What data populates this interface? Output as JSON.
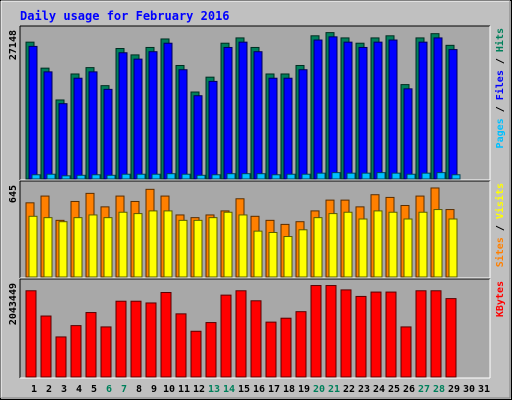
{
  "chart_data": {
    "type": "bar",
    "title": "Daily usage for February 2016",
    "days": [
      "1",
      "2",
      "3",
      "4",
      "5",
      "6",
      "7",
      "8",
      "9",
      "10",
      "11",
      "12",
      "13",
      "14",
      "15",
      "16",
      "17",
      "18",
      "19",
      "20",
      "21",
      "22",
      "23",
      "24",
      "25",
      "26",
      "27",
      "28",
      "29",
      "30",
      "31"
    ],
    "weekend_days": [
      "6",
      "7",
      "13",
      "14",
      "20",
      "21",
      "27",
      "28"
    ],
    "colors": {
      "background": "#c0c0c0",
      "panel": "#a8a8a8",
      "title": "#0000ff",
      "hits": "#00805b",
      "files": "#0000ff",
      "pages": "#00c0ff",
      "visits": "#ffff00",
      "sites": "#ff8000",
      "kbytes": "#ff0000",
      "weekend_label": "#00805b",
      "weekday_label": "#000000"
    },
    "panels": [
      {
        "max_label": "27148",
        "ymax": 27148,
        "legend": [
          {
            "text": "Pages",
            "color": "#00c0ff"
          },
          {
            "text": " / ",
            "color": "#000000"
          },
          {
            "text": "Files",
            "color": "#0000ff"
          },
          {
            "text": " / ",
            "color": "#000000"
          },
          {
            "text": "Hits",
            "color": "#00805b"
          }
        ],
        "series": [
          {
            "name": "Hits",
            "color": "#00805b",
            "values": [
              25800,
              20900,
              14900,
              19800,
              21000,
              17600,
              24600,
              23400,
              24800,
              26400,
              21400,
              16400,
              19200,
              25600,
              26600,
              24800,
              19800,
              19800,
              21400,
              27000,
              27600,
              26600,
              25600,
              26600,
              27000,
              17800,
              26600,
              27400,
              25200
            ]
          },
          {
            "name": "Files",
            "color": "#0000ff",
            "values": [
              25000,
              20200,
              14200,
              19000,
              20200,
              16900,
              23800,
              22600,
              24000,
              25600,
              20600,
              15700,
              18400,
              24800,
              25800,
              24000,
              19000,
              19000,
              20600,
              26200,
              26800,
              25800,
              24800,
              25800,
              26200,
              17000,
              25800,
              26600,
              24400
            ]
          },
          {
            "name": "Pages",
            "color": "#00c0ff",
            "values": [
              800,
              900,
              600,
              700,
              800,
              700,
              900,
              900,
              900,
              1000,
              900,
              700,
              800,
              1000,
              1000,
              1000,
              800,
              900,
              900,
              1100,
              1200,
              1100,
              1100,
              1200,
              1100,
              900,
              1100,
              1200,
              800
            ]
          }
        ]
      },
      {
        "max_label": "645",
        "ymax": 645,
        "legend": [
          {
            "text": "Sites",
            "color": "#ff8000"
          },
          {
            "text": " / ",
            "color": "#000000"
          },
          {
            "text": "Visits",
            "color": "#ffff00"
          }
        ],
        "series": [
          {
            "name": "Sites",
            "color": "#ff8000",
            "values": [
              550,
              600,
              420,
              560,
              620,
              520,
              600,
              560,
              650,
              600,
              460,
              440,
              460,
              490,
              580,
              450,
              420,
              390,
              410,
              490,
              570,
              570,
              520,
              610,
              590,
              530,
              600,
              660,
              500
            ]
          },
          {
            "name": "Visits",
            "color": "#ffff00",
            "values": [
              450,
              440,
              410,
              440,
              460,
              440,
              480,
              470,
              490,
              490,
              420,
              420,
              440,
              480,
              460,
              340,
              330,
              300,
              350,
              440,
              470,
              480,
              430,
              490,
              480,
              430,
              480,
              500,
              430
            ]
          }
        ]
      },
      {
        "max_label": "2043449",
        "ymax": 2043449,
        "legend": [
          {
            "text": "KBytes",
            "color": "#ff0000"
          }
        ],
        "series": [
          {
            "name": "KBytes",
            "color": "#ff0000",
            "values": [
              1980000,
              1400000,
              920000,
              1180000,
              1480000,
              1150000,
              1740000,
              1740000,
              1700000,
              1940000,
              1450000,
              1050000,
              1250000,
              1880000,
              1980000,
              1750000,
              1260000,
              1350000,
              1500000,
              2100000,
              2100000,
              2000000,
              1850000,
              1950000,
              1950000,
              1150000,
              1980000,
              1980000,
              1800000
            ]
          }
        ]
      }
    ]
  }
}
